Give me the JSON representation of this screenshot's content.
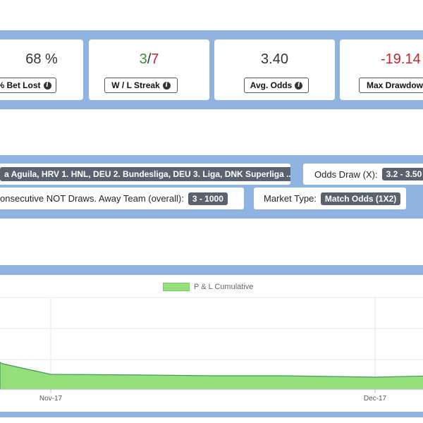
{
  "stats": {
    "bet_lost": {
      "value": "68 %",
      "label": "% Bet Lost"
    },
    "wl_streak": {
      "win": "3",
      "sep": "/",
      "loss": "7",
      "label": "W / L Streak"
    },
    "avg_odds": {
      "value": "3.40",
      "label": "Avg. Odds"
    },
    "max_drawdown": {
      "value": "-19.14",
      "label": "Max Drawdown"
    },
    "info_icon": "info-icon"
  },
  "filters": {
    "leagues": {
      "value": "a Aguila, HRV 1. HNL, DEU 2. Bundesliga, DEU 3. Liga, DNK Superliga ..."
    },
    "odds_draw": {
      "label": "Odds Draw (X):",
      "value": "3.2 - 3.50"
    },
    "consecutive": {
      "label": "onsecutive NOT Draws. Away Team (overall):",
      "value": "3 - 1000"
    },
    "market_type": {
      "label": "Market Type:",
      "value": "Match Odds (1X2)"
    }
  },
  "chart_data": {
    "type": "area",
    "series": [
      {
        "name": "P & L Cumulative",
        "color": "#95e07a"
      }
    ],
    "x_ticks": [
      "Nov-17",
      "Dec-17"
    ],
    "grid": true,
    "legend": "top-center"
  }
}
